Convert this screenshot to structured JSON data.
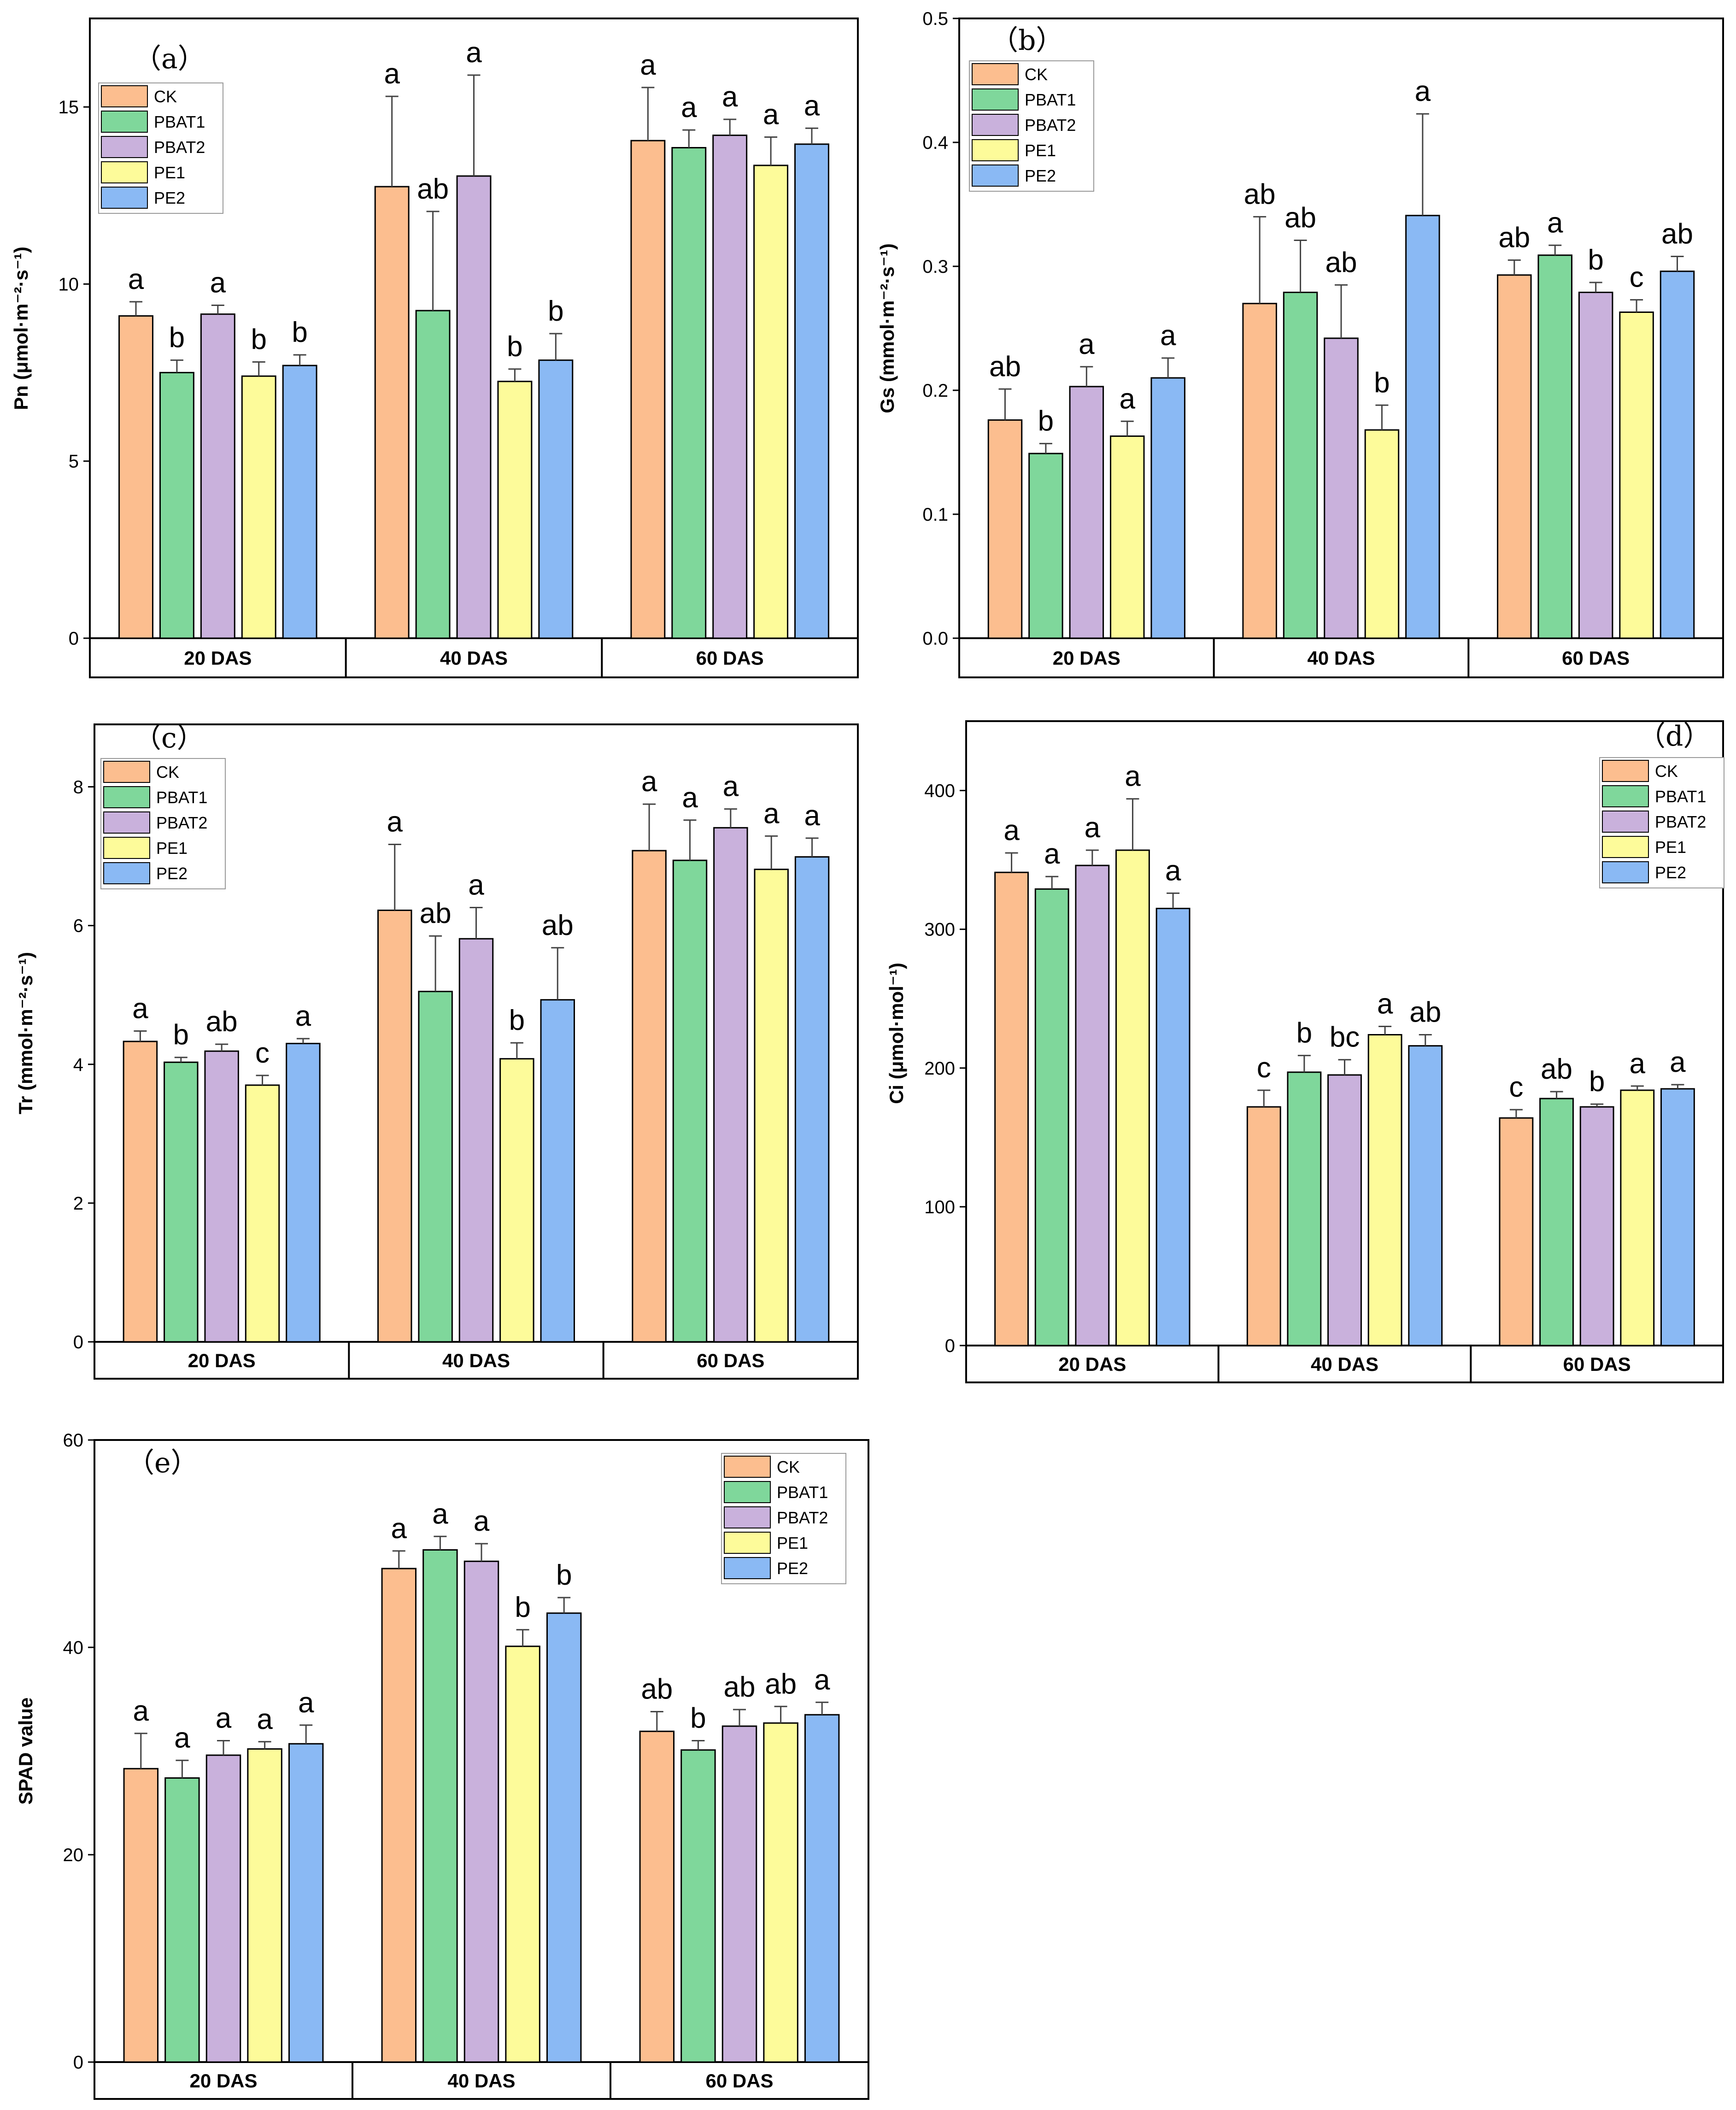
{
  "colors": {
    "CK": "#fcbe8f",
    "PBAT1": "#7fd79b",
    "PBAT2": "#c9b1dc",
    "PE1": "#fdfb9a",
    "PE2": "#8ab9f4"
  },
  "legend": [
    "CK",
    "PBAT1",
    "PBAT2",
    "PE1",
    "PE2"
  ],
  "chart_data": [
    {
      "type": "bar",
      "panel": "（a）",
      "ylabel": "Pn (μmol·m⁻²·s⁻¹)",
      "ylim": [
        0,
        17.5
      ],
      "yticks": [
        0,
        5,
        10,
        15
      ],
      "ytick_labels": [
        "0",
        "5",
        "10",
        "15"
      ],
      "legend_position": "top-left",
      "categories": [
        "20 DAS",
        "40 DAS",
        "60 DAS"
      ],
      "series": [
        {
          "name": "CK",
          "values": [
            9.1,
            12.75,
            14.05
          ],
          "errors": [
            0.4,
            2.55,
            1.5
          ],
          "letters": [
            "a",
            "a",
            "a"
          ]
        },
        {
          "name": "PBAT1",
          "values": [
            7.5,
            9.25,
            13.85
          ],
          "errors": [
            0.35,
            2.8,
            0.5
          ],
          "letters": [
            "b",
            "ab",
            "a"
          ]
        },
        {
          "name": "PBAT2",
          "values": [
            9.15,
            13.05,
            14.2
          ],
          "errors": [
            0.25,
            2.85,
            0.45
          ],
          "letters": [
            "a",
            "a",
            "a"
          ]
        },
        {
          "name": "PE1",
          "values": [
            7.4,
            7.25,
            13.35
          ],
          "errors": [
            0.4,
            0.35,
            0.8
          ],
          "letters": [
            "b",
            "b",
            "a"
          ]
        },
        {
          "name": "PE2",
          "values": [
            7.7,
            7.85,
            13.95
          ],
          "errors": [
            0.3,
            0.75,
            0.45
          ],
          "letters": [
            "b",
            "b",
            "a"
          ]
        }
      ]
    },
    {
      "type": "bar",
      "panel": "（b）",
      "ylabel": "Gs (mmol·m⁻²·s⁻¹)",
      "ylim": [
        0,
        0.5
      ],
      "yticks": [
        0,
        0.1,
        0.2,
        0.3,
        0.4,
        0.5
      ],
      "ytick_labels": [
        "0.0",
        "0.1",
        "0.2",
        "0.3",
        "0.4",
        "0.5"
      ],
      "legend_position": "top-left",
      "categories": [
        "20 DAS",
        "40 DAS",
        "60 DAS"
      ],
      "series": [
        {
          "name": "CK",
          "values": [
            0.176,
            0.27,
            0.293
          ],
          "errors": [
            0.025,
            0.07,
            0.012
          ],
          "letters": [
            "ab",
            "ab",
            "ab"
          ]
        },
        {
          "name": "PBAT1",
          "values": [
            0.149,
            0.279,
            0.309
          ],
          "errors": [
            0.008,
            0.042,
            0.008
          ],
          "letters": [
            "b",
            "ab",
            "a"
          ]
        },
        {
          "name": "PBAT2",
          "values": [
            0.203,
            0.242,
            0.279
          ],
          "errors": [
            0.016,
            0.043,
            0.008
          ],
          "letters": [
            "a",
            "ab",
            "b"
          ]
        },
        {
          "name": "PE1",
          "values": [
            0.163,
            0.168,
            0.263
          ],
          "errors": [
            0.012,
            0.02,
            0.01
          ],
          "letters": [
            "a",
            "b",
            "c"
          ]
        },
        {
          "name": "PE2",
          "values": [
            0.21,
            0.341,
            0.296
          ],
          "errors": [
            0.016,
            0.082,
            0.012
          ],
          "letters": [
            "a",
            "a",
            "ab"
          ]
        }
      ]
    },
    {
      "type": "bar",
      "panel": "（c）",
      "ylabel": "Tr (mmol·m⁻²·s⁻¹)",
      "ylim": [
        0,
        8.9
      ],
      "yticks": [
        0,
        2,
        4,
        6,
        8
      ],
      "ytick_labels": [
        "0",
        "2",
        "4",
        "6",
        "8"
      ],
      "legend_position": "top-left",
      "categories": [
        "20 DAS",
        "40 DAS",
        "60 DAS"
      ],
      "series": [
        {
          "name": "CK",
          "values": [
            4.33,
            6.22,
            7.08
          ],
          "errors": [
            0.15,
            0.95,
            0.67
          ],
          "letters": [
            "a",
            "a",
            "a"
          ]
        },
        {
          "name": "PBAT1",
          "values": [
            4.03,
            5.05,
            6.94
          ],
          "errors": [
            0.07,
            0.8,
            0.58
          ],
          "letters": [
            "b",
            "ab",
            "a"
          ]
        },
        {
          "name": "PBAT2",
          "values": [
            4.19,
            5.81,
            7.41
          ],
          "errors": [
            0.1,
            0.45,
            0.27
          ],
          "letters": [
            "ab",
            "a",
            "a"
          ]
        },
        {
          "name": "PE1",
          "values": [
            3.7,
            4.08,
            6.81
          ],
          "errors": [
            0.14,
            0.23,
            0.48
          ],
          "letters": [
            "c",
            "b",
            "a"
          ]
        },
        {
          "name": "PE2",
          "values": [
            4.3,
            4.93,
            6.99
          ],
          "errors": [
            0.07,
            0.75,
            0.27
          ],
          "letters": [
            "a",
            "ab",
            "a"
          ]
        }
      ]
    },
    {
      "type": "bar",
      "panel": "（d）",
      "ylabel": "Ci (μmol·mol⁻¹)",
      "ylim": [
        0,
        450
      ],
      "yticks": [
        0,
        100,
        200,
        300,
        400
      ],
      "ytick_labels": [
        "0",
        "100",
        "200",
        "300",
        "400"
      ],
      "legend_position": "top-right",
      "categories": [
        "20 DAS",
        "40 DAS",
        "60 DAS"
      ],
      "series": [
        {
          "name": "CK",
          "values": [
            341,
            172,
            164
          ],
          "errors": [
            14,
            12,
            6
          ],
          "letters": [
            "a",
            "c",
            "c"
          ]
        },
        {
          "name": "PBAT1",
          "values": [
            329,
            197,
            178
          ],
          "errors": [
            9,
            12,
            5
          ],
          "letters": [
            "a",
            "b",
            "ab"
          ]
        },
        {
          "name": "PBAT2",
          "values": [
            346,
            195,
            172
          ],
          "errors": [
            11,
            11,
            2
          ],
          "letters": [
            "a",
            "bc",
            "b"
          ]
        },
        {
          "name": "PE1",
          "values": [
            357,
            224,
            184
          ],
          "errors": [
            37,
            6,
            3
          ],
          "letters": [
            "a",
            "a",
            "a"
          ]
        },
        {
          "name": "PE2",
          "values": [
            315,
            216,
            185
          ],
          "errors": [
            11,
            8,
            3
          ],
          "letters": [
            "a",
            "ab",
            "a"
          ]
        }
      ]
    },
    {
      "type": "bar",
      "panel": "（e）",
      "ylabel": "SPAD value",
      "ylim": [
        0,
        60
      ],
      "yticks": [
        0,
        20,
        40,
        60
      ],
      "ytick_labels": [
        "0",
        "20",
        "40",
        "60"
      ],
      "legend_position": "top-right",
      "categories": [
        "20 DAS",
        "40 DAS",
        "60 DAS"
      ],
      "series": [
        {
          "name": "CK",
          "values": [
            28.3,
            47.6,
            31.9
          ],
          "errors": [
            3.4,
            1.7,
            1.9
          ],
          "letters": [
            "a",
            "a",
            "ab"
          ]
        },
        {
          "name": "PBAT1",
          "values": [
            27.4,
            49.4,
            30.1
          ],
          "errors": [
            1.7,
            1.3,
            0.9
          ],
          "letters": [
            "a",
            "a",
            "b"
          ]
        },
        {
          "name": "PBAT2",
          "values": [
            29.6,
            48.3,
            32.4
          ],
          "errors": [
            1.4,
            1.7,
            1.6
          ],
          "letters": [
            "a",
            "a",
            "ab"
          ]
        },
        {
          "name": "PE1",
          "values": [
            30.2,
            40.1,
            32.7
          ],
          "errors": [
            0.7,
            1.6,
            1.6
          ],
          "letters": [
            "a",
            "b",
            "ab"
          ]
        },
        {
          "name": "PE2",
          "values": [
            30.7,
            43.3,
            33.5
          ],
          "errors": [
            1.8,
            1.5,
            1.2
          ],
          "letters": [
            "a",
            "b",
            "a"
          ]
        }
      ]
    }
  ]
}
